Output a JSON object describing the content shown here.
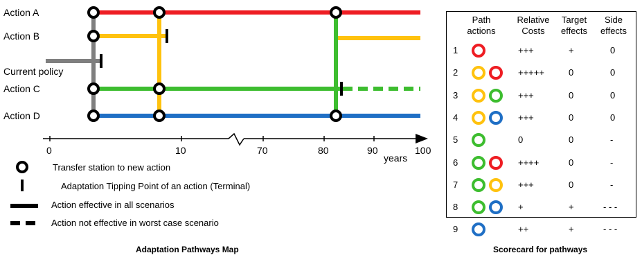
{
  "map": {
    "action_labels": [
      "Action A",
      "Action B",
      "Current policy",
      "Action C",
      "Action D"
    ],
    "axis_ticks": [
      "0",
      "10",
      "70",
      "80",
      "90",
      "100"
    ],
    "axis_unit": "years",
    "legend": [
      "Transfer station to new action",
      "Adaptation Tipping Point of an action (Terminal)",
      "Action effective in all scenarios",
      "Action not effective in worst case scenario"
    ],
    "caption": "Adaptation Pathways Map"
  },
  "scorecard": {
    "headers": {
      "path_actions": [
        "Path",
        "actions"
      ],
      "relative_costs": [
        "Relative",
        "Costs"
      ],
      "target_effects": [
        "Target",
        "effects"
      ],
      "side_effects": [
        "Side",
        "effects"
      ]
    },
    "rows": [
      {
        "num": "1",
        "circles": [
          "red"
        ],
        "cost": "+++",
        "target": "+",
        "side": "0"
      },
      {
        "num": "2",
        "circles": [
          "yellow",
          "red"
        ],
        "cost": "+++++",
        "target": "0",
        "side": "0"
      },
      {
        "num": "3",
        "circles": [
          "yellow",
          "green"
        ],
        "cost": "+++",
        "target": "0",
        "side": "0"
      },
      {
        "num": "4",
        "circles": [
          "yellow",
          "blue"
        ],
        "cost": "+++",
        "target": "0",
        "side": "0"
      },
      {
        "num": "5",
        "circles": [
          "green"
        ],
        "cost": "0",
        "target": "0",
        "side": "-"
      },
      {
        "num": "6",
        "circles": [
          "green",
          "red"
        ],
        "cost": "++++",
        "target": "0",
        "side": "-"
      },
      {
        "num": "7",
        "circles": [
          "green",
          "yellow"
        ],
        "cost": "+++",
        "target": "0",
        "side": "-"
      },
      {
        "num": "8",
        "circles": [
          "green",
          "blue"
        ],
        "cost": "+",
        "target": "+",
        "side": "- - -"
      },
      {
        "num": "9",
        "circles": [
          "blue"
        ],
        "cost": "++",
        "target": "+",
        "side": "- - -"
      }
    ],
    "caption": "Scorecard for pathways"
  },
  "colors": {
    "red": "#ee1d23",
    "yellow": "#ffc20e",
    "green": "#3dbd2f",
    "blue": "#1f6fc5",
    "gray": "#7f7f7f"
  }
}
